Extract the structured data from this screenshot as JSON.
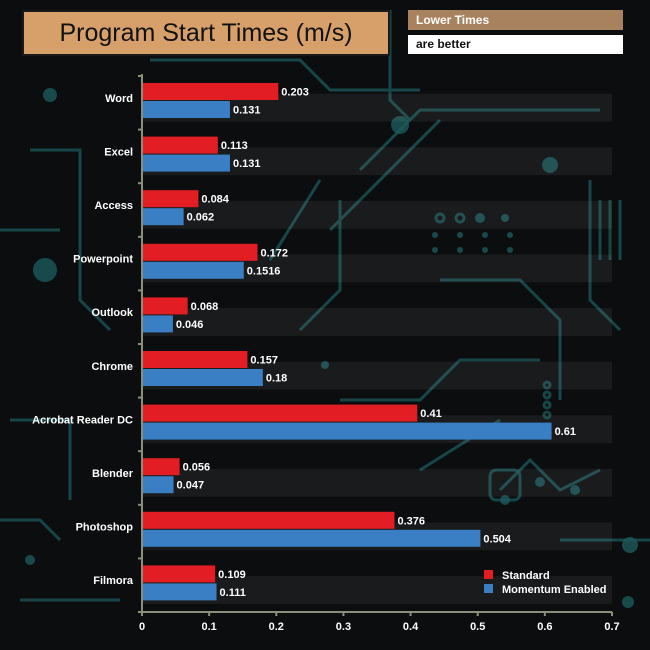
{
  "header": {
    "title": "Program Start Times (m/s)",
    "note_line1": "Lower Times",
    "note_line2": "are better"
  },
  "colors": {
    "background": "#0b0d0e",
    "circuit": "#1c5a5c",
    "title_box": "#d7a06a",
    "note_box": "#a8825f",
    "axis": "#8a8f7a",
    "standard": "#e31d24",
    "momentum": "#3a7fc4"
  },
  "chart_data": {
    "type": "bar",
    "orientation": "horizontal",
    "title": "Program Start Times (m/s)",
    "categories": [
      "Word",
      "Excel",
      "Access",
      "Powerpoint",
      "Outlook",
      "Chrome",
      "Acrobat Reader DC",
      "Blender",
      "Photoshop",
      "Filmora"
    ],
    "series": [
      {
        "name": "Standard",
        "color": "#e31d24",
        "values": [
          0.203,
          0.113,
          0.084,
          0.172,
          0.068,
          0.157,
          0.41,
          0.056,
          0.376,
          0.109
        ],
        "labels": [
          "0.203",
          "0.113",
          "0.084",
          "0.172",
          "0.068",
          "0.157",
          "0.41",
          "0.056",
          "0.376",
          "0.109"
        ]
      },
      {
        "name": "Momentum Enabled",
        "color": "#3a7fc4",
        "values": [
          0.131,
          0.131,
          0.062,
          0.1516,
          0.046,
          0.18,
          0.61,
          0.047,
          0.504,
          0.111
        ],
        "labels": [
          "0.131",
          "0.131",
          "0.062",
          "0.1516",
          "0.046",
          "0.18",
          "0.61",
          "0.047",
          "0.504",
          "0.111"
        ]
      }
    ],
    "xlim": [
      0,
      0.7
    ],
    "xticks": [
      "0",
      "0.1",
      "0.2",
      "0.3",
      "0.4",
      "0.5",
      "0.6",
      "0.7"
    ],
    "legend_position": "bottom-right",
    "grid": false
  }
}
